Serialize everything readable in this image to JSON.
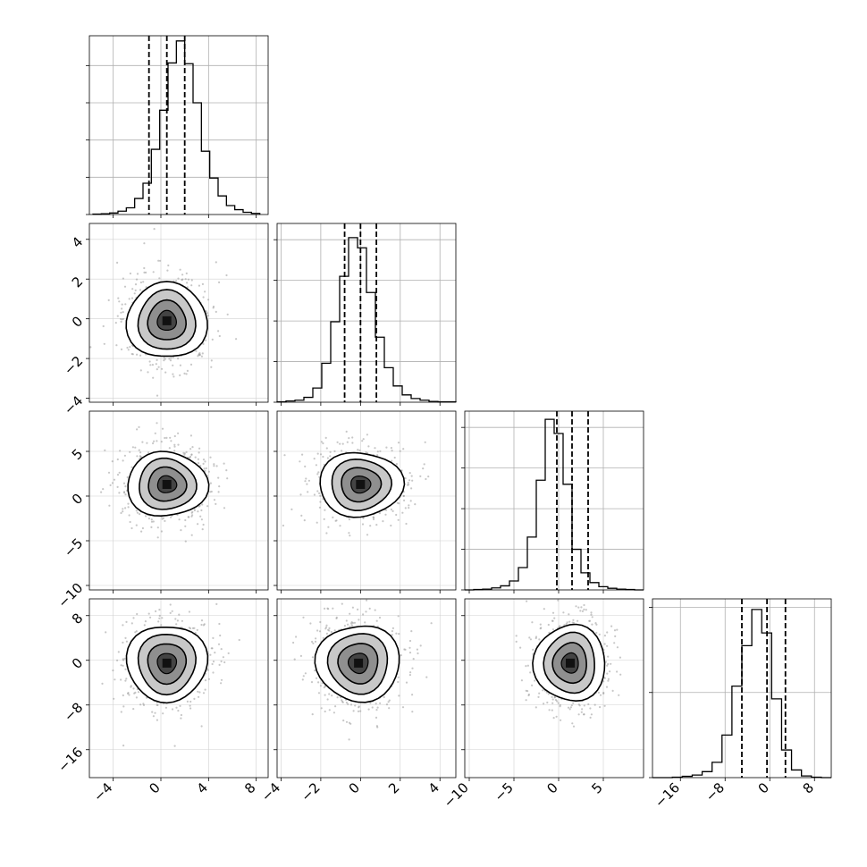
{
  "figure": {
    "type": "corner",
    "description_free": true
  },
  "chart_data": [
    {
      "type": "histogram",
      "panel": "1D",
      "param": 0,
      "bins_range": [
        -5.7,
        8.3
      ],
      "counts": [
        1,
        2,
        4,
        9,
        18,
        43,
        84,
        175,
        280,
        407,
        466,
        405,
        300,
        170,
        98,
        50,
        24,
        13,
        6,
        3
      ],
      "quantile_lines": [
        -1.0,
        0.5,
        2.0
      ],
      "ylim": [
        0,
        480
      ],
      "yticks": [
        0,
        100,
        200,
        300,
        400
      ]
    },
    {
      "type": "histogram",
      "panel": "1D",
      "param": 1,
      "bins_range": [
        -4.2,
        4.8
      ],
      "counts": [
        1,
        3,
        5,
        12,
        35,
        96,
        198,
        310,
        405,
        380,
        270,
        160,
        85,
        40,
        18,
        9,
        5,
        2,
        1,
        1
      ],
      "quantile_lines": [
        -0.8,
        0.0,
        0.8
      ],
      "ylim": [
        0,
        440
      ],
      "yticks": [
        0,
        100,
        200,
        300,
        400
      ]
    },
    {
      "type": "histogram",
      "panel": "1D",
      "param": 2,
      "bins_range": [
        -10.5,
        9.5
      ],
      "counts": [
        0,
        1,
        2,
        5,
        10,
        22,
        55,
        130,
        270,
        420,
        385,
        260,
        100,
        42,
        18,
        8,
        4,
        2,
        1,
        0
      ],
      "quantile_lines": [
        -0.2,
        1.5,
        3.3
      ],
      "ylim": [
        0,
        440
      ],
      "yticks": [
        0,
        100,
        200,
        300,
        400
      ]
    },
    {
      "type": "histogram",
      "panel": "1D",
      "param": 3,
      "bins_range": [
        -21.0,
        11.0
      ],
      "counts": [
        0,
        0,
        1,
        3,
        6,
        14,
        36,
        100,
        215,
        310,
        395,
        340,
        185,
        65,
        18,
        4,
        1,
        0
      ],
      "quantile_lines": [
        -5.0,
        -0.5,
        2.8
      ],
      "ylim": [
        0,
        420
      ],
      "yticks": [
        0,
        200,
        400
      ]
    },
    {
      "type": "scatter-density",
      "panel": "2D",
      "x_param": 0,
      "y_param": 1,
      "center": [
        0.5,
        -0.1
      ],
      "spread": [
        1.6,
        1.0
      ]
    },
    {
      "type": "scatter-density",
      "panel": "2D",
      "x_param": 0,
      "y_param": 2,
      "center": [
        0.5,
        1.3
      ],
      "spread": [
        1.6,
        1.9
      ]
    },
    {
      "type": "scatter-density",
      "panel": "2D",
      "x_param": 1,
      "y_param": 2,
      "center": [
        0.0,
        1.3
      ],
      "spread": [
        1.0,
        1.9
      ]
    },
    {
      "type": "scatter-density",
      "panel": "2D",
      "x_param": 0,
      "y_param": 3,
      "center": [
        0.5,
        -0.5
      ],
      "spread": [
        1.6,
        3.6
      ]
    },
    {
      "type": "scatter-density",
      "panel": "2D",
      "x_param": 1,
      "y_param": 3,
      "center": [
        -0.1,
        -0.5
      ],
      "spread": [
        1.0,
        3.6
      ]
    },
    {
      "type": "scatter-density",
      "panel": "2D",
      "x_param": 2,
      "y_param": 3,
      "center": [
        1.3,
        -0.5
      ],
      "spread": [
        1.9,
        3.6
      ]
    }
  ],
  "axes": [
    {
      "range": [
        -6.0,
        9.0
      ],
      "ticks": [
        -4,
        0,
        4,
        8
      ],
      "tick_labels": [
        "−4",
        "0",
        "4",
        "8"
      ]
    },
    {
      "range": [
        -4.2,
        4.8
      ],
      "ticks": [
        -4,
        -2,
        0,
        2,
        4
      ],
      "tick_labels": [
        "−4",
        "−2",
        "0",
        "2",
        "4"
      ]
    },
    {
      "range": [
        -10.5,
        9.5
      ],
      "ticks": [
        -10,
        -5,
        0,
        5
      ],
      "tick_labels": [
        "−10",
        "−5",
        "0",
        "5"
      ]
    },
    {
      "range": [
        -21.0,
        11.0
      ],
      "ticks": [
        -16,
        -8,
        0,
        8
      ],
      "tick_labels": [
        "−16",
        "−8",
        "0",
        "8"
      ]
    }
  ]
}
